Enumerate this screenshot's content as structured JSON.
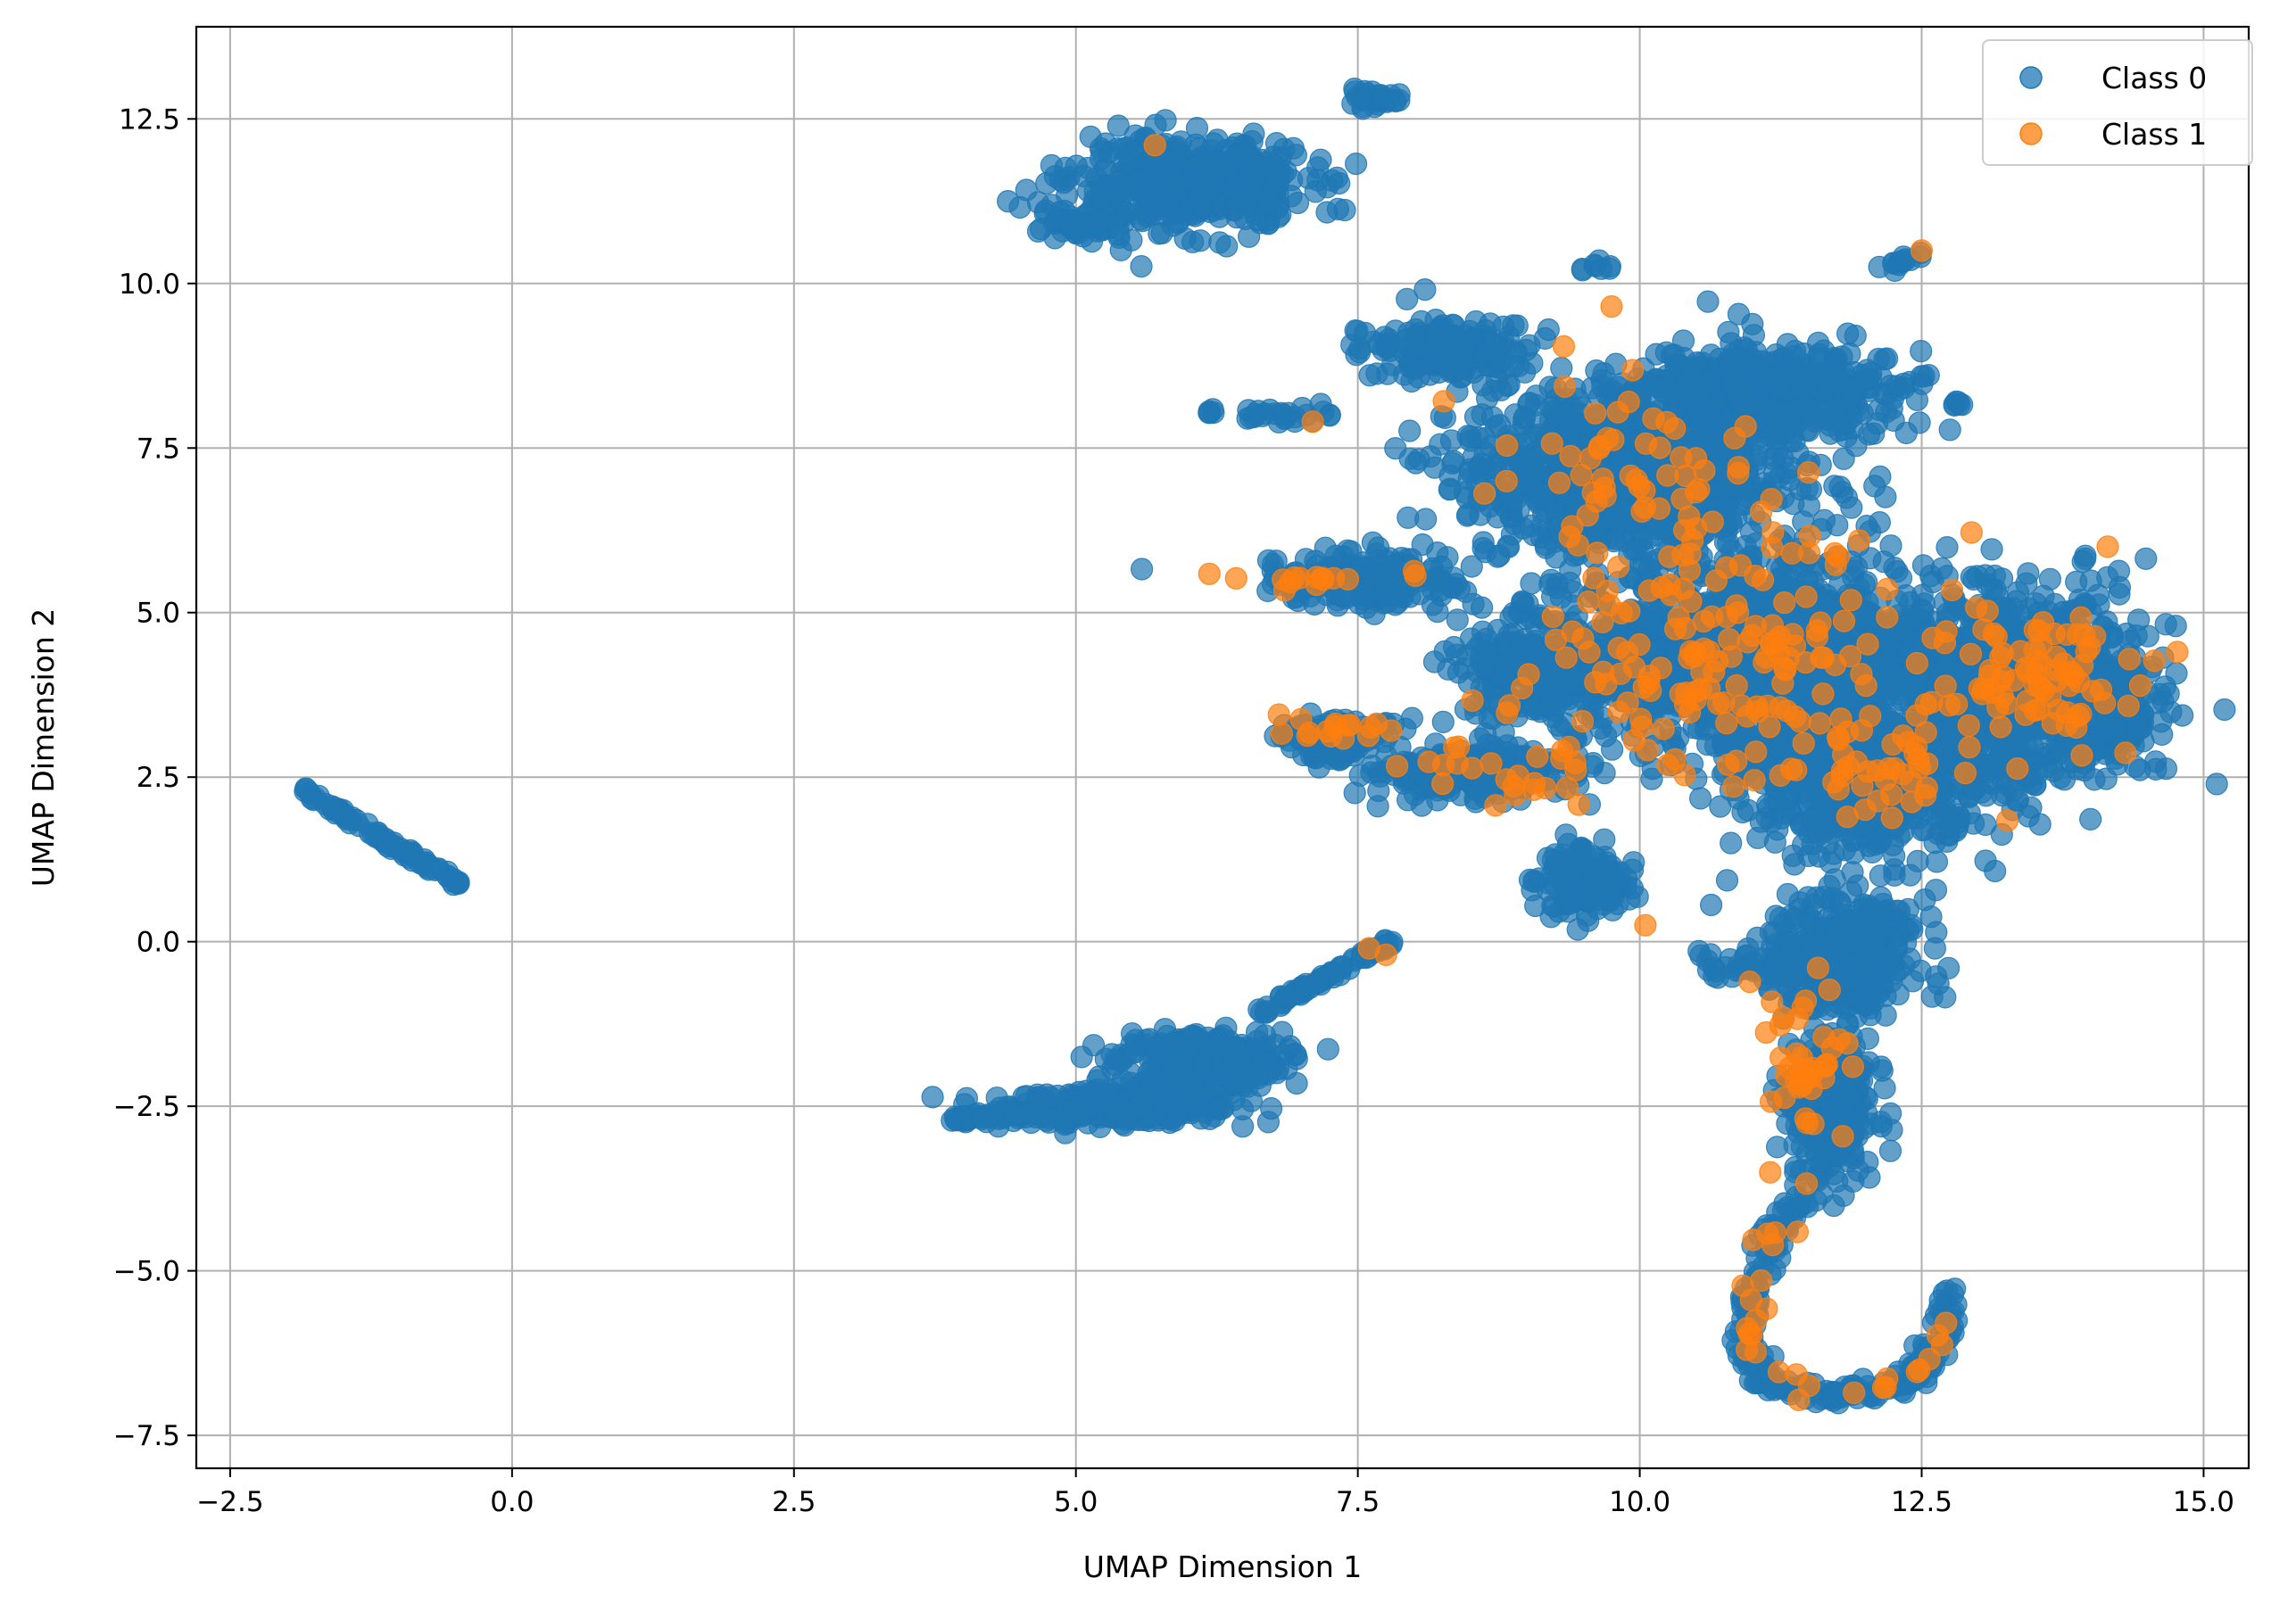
{
  "chart_data": {
    "type": "scatter",
    "title": "",
    "xlabel": "UMAP Dimension 1",
    "ylabel": "UMAP Dimension 2",
    "xlim": [
      -2.8,
      15.4
    ],
    "ylim": [
      -8.0,
      13.9
    ],
    "xticks": [
      -2.5,
      0.0,
      2.5,
      5.0,
      7.5,
      10.0,
      12.5,
      15.0
    ],
    "xtick_labels": [
      "−2.5",
      "0.0",
      "2.5",
      "5.0",
      "7.5",
      "10.0",
      "12.5",
      "15.0"
    ],
    "yticks": [
      -7.5,
      -5.0,
      -2.5,
      0.0,
      2.5,
      5.0,
      7.5,
      10.0,
      12.5
    ],
    "ytick_labels": [
      "−7.5",
      "−5.0",
      "−2.5",
      "0.0",
      "2.5",
      "5.0",
      "7.5",
      "10.0",
      "12.5"
    ],
    "grid": true,
    "legend_position": "top-right",
    "series": [
      {
        "name": "Class 0",
        "color": "#1f77b4",
        "clusters": [
          {
            "shape": "line",
            "from": [
              -1.9,
              2.35
            ],
            "to": [
              -0.45,
              0.85
            ],
            "n": 80
          },
          {
            "shape": "blob",
            "center": [
              5.4,
              -2.5
            ],
            "spread": [
              0.8,
              0.2
            ],
            "n": 420
          },
          {
            "shape": "blob",
            "center": [
              6.1,
              -1.8
            ],
            "spread": [
              0.6,
              0.35
            ],
            "n": 320
          },
          {
            "shape": "line",
            "from": [
              6.6,
              -1.1
            ],
            "to": [
              7.8,
              0.0
            ],
            "n": 80
          },
          {
            "shape": "line",
            "from": [
              3.9,
              -2.7
            ],
            "to": [
              4.8,
              -2.6
            ],
            "n": 50
          },
          {
            "shape": "blob",
            "center": [
              6.0,
              11.5
            ],
            "spread": [
              0.85,
              0.55
            ],
            "n": 480
          },
          {
            "shape": "blob",
            "center": [
              5.0,
              10.85
            ],
            "spread": [
              0.3,
              0.15
            ],
            "n": 50
          },
          {
            "shape": "blob",
            "center": [
              7.6,
              12.8
            ],
            "spread": [
              0.22,
              0.1
            ],
            "n": 30
          },
          {
            "shape": "line",
            "from": [
              12.2,
              10.2
            ],
            "to": [
              12.5,
              10.5
            ],
            "n": 15
          },
          {
            "shape": "blob",
            "center": [
              9.95,
              7.2
            ],
            "spread": [
              1.25,
              1.1
            ],
            "n": 1000
          },
          {
            "shape": "blob",
            "center": [
              11.2,
              8.4
            ],
            "spread": [
              0.95,
              0.5
            ],
            "n": 450
          },
          {
            "shape": "blob",
            "center": [
              11.1,
              4.3
            ],
            "spread": [
              1.35,
              1.3
            ],
            "n": 1200
          },
          {
            "shape": "blob",
            "center": [
              13.4,
              3.9
            ],
            "spread": [
              0.9,
              1.1
            ],
            "n": 1000
          },
          {
            "shape": "blob",
            "center": [
              12.0,
              2.6
            ],
            "spread": [
              0.9,
              1.0
            ],
            "n": 700
          },
          {
            "shape": "blob",
            "center": [
              8.5,
              2.6
            ],
            "spread": [
              0.8,
              0.35
            ],
            "n": 220
          },
          {
            "shape": "blob",
            "center": [
              9.1,
              4.2
            ],
            "spread": [
              0.6,
              0.7
            ],
            "n": 250
          },
          {
            "shape": "blob",
            "center": [
              9.5,
              0.9
            ],
            "spread": [
              0.4,
              0.45
            ],
            "n": 120
          },
          {
            "shape": "blob",
            "center": [
              7.6,
              5.5
            ],
            "spread": [
              0.7,
              0.35
            ],
            "n": 170
          },
          {
            "shape": "blob",
            "center": [
              7.3,
              3.1
            ],
            "spread": [
              0.45,
              0.25
            ],
            "n": 110
          },
          {
            "shape": "blob",
            "center": [
              11.8,
              -0.2
            ],
            "spread": [
              0.55,
              0.8
            ],
            "n": 380
          },
          {
            "shape": "blob",
            "center": [
              11.7,
              -2.5
            ],
            "spread": [
              0.3,
              0.9
            ],
            "n": 260
          },
          {
            "shape": "path",
            "points": [
              [
                11.6,
                -3.6
              ],
              [
                11.2,
                -4.4
              ],
              [
                11.0,
                -5.4
              ],
              [
                10.95,
                -6.3
              ],
              [
                11.15,
                -6.75
              ],
              [
                11.8,
                -6.9
              ],
              [
                12.4,
                -6.7
              ],
              [
                12.7,
                -6.0
              ],
              [
                12.75,
                -5.3
              ]
            ],
            "n": 220
          },
          {
            "shape": "blob",
            "center": [
              8.3,
              9.0
            ],
            "spread": [
              0.6,
              0.4
            ],
            "n": 180
          },
          {
            "shape": "blob",
            "center": [
              6.9,
              8.0
            ],
            "spread": [
              0.4,
              0.1
            ],
            "n": 25
          },
          {
            "shape": "blob",
            "center": [
              6.2,
              8.05
            ],
            "spread": [
              0.05,
              0.05
            ],
            "n": 5
          },
          {
            "shape": "blob",
            "center": [
              9.6,
              10.25
            ],
            "spread": [
              0.1,
              0.07
            ],
            "n": 8
          },
          {
            "shape": "blob",
            "center": [
              12.8,
              8.2
            ],
            "spread": [
              0.06,
              0.04
            ],
            "n": 6
          },
          {
            "shape": "blob",
            "center": [
              10.9,
              -0.35
            ],
            "spread": [
              0.4,
              0.2
            ],
            "n": 35
          },
          {
            "shape": "blob",
            "center": [
              14.3,
              3.3
            ],
            "spread": [
              0.3,
              0.5
            ],
            "n": 70
          }
        ]
      },
      {
        "name": "Class 1",
        "color": "#ff7f0e",
        "clusters": [
          {
            "shape": "blob",
            "center": [
              10.9,
              4.5
            ],
            "spread": [
              1.5,
              1.5
            ],
            "n": 170
          },
          {
            "shape": "blob",
            "center": [
              13.5,
              4.0
            ],
            "spread": [
              0.7,
              0.9
            ],
            "n": 80
          },
          {
            "shape": "blob",
            "center": [
              9.8,
              7.2
            ],
            "spread": [
              1.1,
              1.1
            ],
            "n": 55
          },
          {
            "shape": "blob",
            "center": [
              11.5,
              -1.8
            ],
            "spread": [
              0.3,
              1.0
            ],
            "n": 40
          },
          {
            "shape": "path",
            "points": [
              [
                11.5,
                -3.8
              ],
              [
                11.1,
                -4.6
              ],
              [
                10.95,
                -5.6
              ],
              [
                11.0,
                -6.5
              ],
              [
                11.5,
                -6.8
              ],
              [
                12.2,
                -6.8
              ],
              [
                12.6,
                -6.3
              ],
              [
                12.7,
                -5.5
              ]
            ],
            "n": 30
          },
          {
            "shape": "blob",
            "center": [
              7.1,
              5.5
            ],
            "spread": [
              0.6,
              0.1
            ],
            "n": 15
          },
          {
            "shape": "blob",
            "center": [
              7.2,
              3.2
            ],
            "spread": [
              0.5,
              0.15
            ],
            "n": 15
          },
          {
            "shape": "blob",
            "center": [
              8.9,
              2.6
            ],
            "spread": [
              0.7,
              0.4
            ],
            "n": 25
          },
          {
            "shape": "blob",
            "center": [
              12.1,
              2.6
            ],
            "spread": [
              0.7,
              0.7
            ],
            "n": 40
          }
        ],
        "points": [
          [
            5.7,
            12.1
          ],
          [
            12.5,
            10.5
          ],
          [
            9.75,
            9.65
          ],
          [
            7.1,
            7.9
          ],
          [
            7.75,
            -0.2
          ],
          [
            7.6,
            -0.1
          ],
          [
            6.8,
            3.45
          ],
          [
            10.05,
            0.25
          ],
          [
            14.15,
            6.0
          ]
        ]
      }
    ]
  }
}
